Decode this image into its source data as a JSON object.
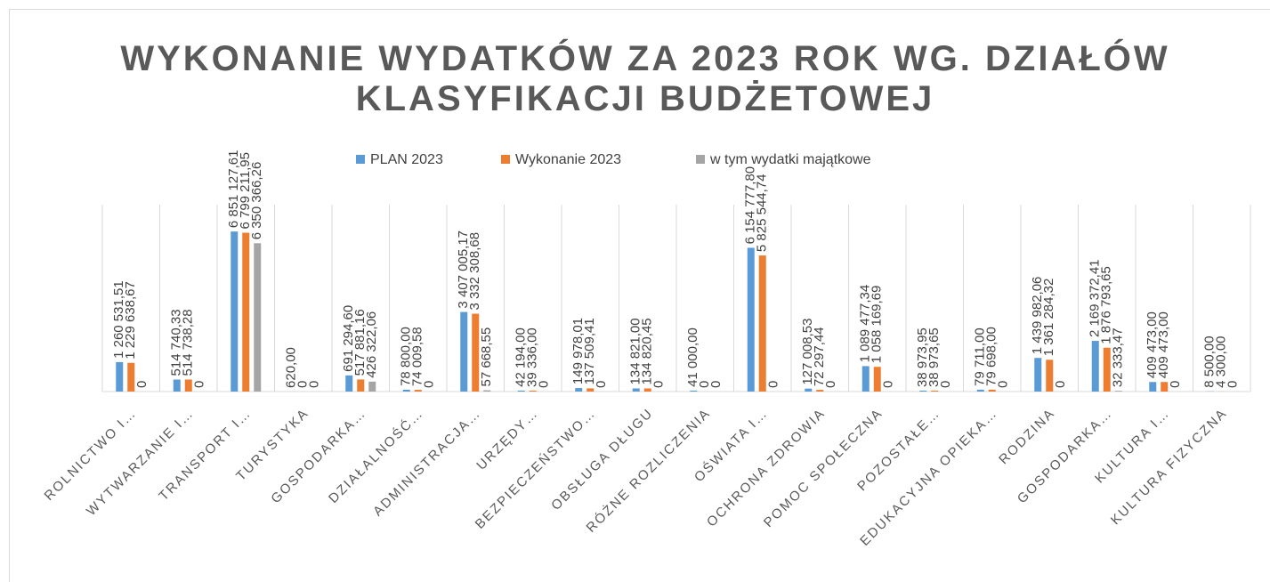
{
  "chart_data": {
    "type": "bar",
    "title": "WYKONANIE WYDATKÓW ZA 2023 ROK WG. DZIAŁÓW KLASYFIKACJI BUDŻETOWEJ",
    "categories": [
      "ROLNICTWO I…",
      "WYTWARZANIE I…",
      "TRANSPORT I…",
      "TURYSTYKA",
      "GOSPODARKA…",
      "DZIAŁALNOŚĆ…",
      "ADMINISTRACJA…",
      "URZĘDY…",
      "BEZPIECZEŃSTWO…",
      "OBSŁUGA DŁUGU",
      "RÓŻNE ROZLICZENIA",
      "OŚWIATA I…",
      "OCHRONA ZDROWIA",
      "POMOC SPOŁECZNA",
      "POZOSTAŁE…",
      "EDUKACYJNA OPIEKA…",
      "RODZINA",
      "GOSPODARKA…",
      "KULTURA I…",
      "KULTURA FIZYCZNA"
    ],
    "series": [
      {
        "name": "PLAN 2023",
        "color": "#5b9bd5",
        "values": [
          1260531.51,
          514740.33,
          6851127.61,
          620.0,
          691294.6,
          78800.0,
          3407005.17,
          42194.0,
          149978.01,
          134821.0,
          41000.0,
          6154777.8,
          127008.53,
          1089477.34,
          38973.95,
          79711.0,
          1439982.06,
          2169372.41,
          409473.0,
          8500.0
        ],
        "value_labels": [
          "1 260 531,51",
          "514 740,33",
          "6 851 127,61",
          "620,00",
          "691 294,60",
          "78 800,00",
          "3 407 005,17",
          "42 194,00",
          "149 978,01",
          "134 821,00",
          "41 000,00",
          "6 154 777,80",
          "127 008,53",
          "1 089 477,34",
          "38 973,95",
          "79 711,00",
          "1 439 982,06",
          "2 169 372,41",
          "409 473,00",
          "8 500,00"
        ]
      },
      {
        "name": "Wykonanie 2023",
        "color": "#ed7d31",
        "values": [
          1229638.67,
          514738.28,
          6799211.95,
          0,
          517881.16,
          74009.58,
          3332308.68,
          39336.0,
          137509.41,
          134820.45,
          0,
          5825544.74,
          72297.44,
          1058169.69,
          38973.65,
          79698.0,
          1361284.32,
          1876793.65,
          409473.0,
          4300.0
        ],
        "value_labels": [
          "1 229 638,67",
          "514 738,28",
          "6 799 211,95",
          "0",
          "517 881,16",
          "74 009,58",
          "3 332 308,68",
          "39 336,00",
          "137 509,41",
          "134 820,45",
          "0",
          "5 825 544,74",
          "72 297,44",
          "1 058 169,69",
          "38 973,65",
          "79 698,00",
          "1 361 284,32",
          "1 876 793,65",
          "409 473,00",
          "4 300,00"
        ]
      },
      {
        "name": "w tym wydatki majątkowe",
        "color": "#a5a5a5",
        "values": [
          0,
          0,
          6350366.26,
          0,
          426322.06,
          0,
          57668.55,
          0,
          0,
          0,
          0,
          0,
          0,
          0,
          0,
          0,
          0,
          32333.47,
          0,
          0
        ],
        "value_labels": [
          "0",
          "0",
          "6 350 366,26",
          "0",
          "426 322,06",
          "0",
          "57 668,55",
          "0",
          "0",
          "0",
          "0",
          "0",
          "0",
          "0",
          "0",
          "0",
          "0",
          "32 333,47",
          "0",
          "0"
        ]
      }
    ],
    "ylim": [
      0,
      8000000
    ]
  }
}
